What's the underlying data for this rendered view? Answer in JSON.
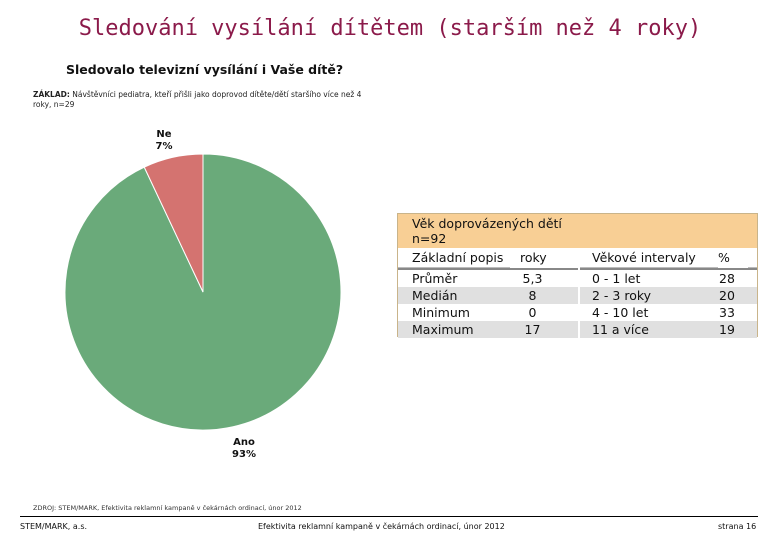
{
  "slide": {
    "title": "Sledování vysílání dítětem (starším než 4 roky)",
    "question": "Sledovalo televizní vysílání i Vaše dítě?",
    "base_label": "ZÁKLAD:",
    "base_text": "Návštěvníci pediatra, kteří přišli jako doprovod dítěte/dětí staršího více než 4 roky, n=29",
    "source": "ZDROJ: STEM/MARK, Efektivita reklamní kampaně v čekárnách ordinací, únor 2012"
  },
  "chart_data": {
    "type": "pie",
    "title": "",
    "slices": [
      {
        "label": "Ano",
        "value": 93,
        "value_label": "93%",
        "color": "#6aaa7a"
      },
      {
        "label": "Ne",
        "value": 7,
        "value_label": "7%",
        "color": "#d47370"
      }
    ],
    "start": "12 o'clock",
    "direction": "clockwise for Ne"
  },
  "age_table": {
    "title": "Věk doprovázených dětí",
    "n": "n=92",
    "left_headers": {
      "stat": "Základní popis",
      "unit": "roky"
    },
    "right_headers": {
      "interval": "Věkové intervaly",
      "pct": "%"
    },
    "left_rows": [
      {
        "stat": "Průměr",
        "value": "5,3"
      },
      {
        "stat": "Medián",
        "value": "8"
      },
      {
        "stat": "Minimum",
        "value": "0"
      },
      {
        "stat": "Maximum",
        "value": "17"
      }
    ],
    "right_rows": [
      {
        "interval": "0 - 1 let",
        "pct": "28"
      },
      {
        "interval": "2 - 3 roky",
        "pct": "20"
      },
      {
        "interval": "4 - 10 let",
        "pct": "33"
      },
      {
        "interval": "11 a více",
        "pct": "19"
      }
    ],
    "colors": {
      "header_bg": "#f8cf95",
      "shade": "#e0e0e0"
    }
  },
  "footer": {
    "left": "STEM/MARK, a.s.",
    "middle": "Efektivita reklamní kampaně v čekárnách ordinací, únor 2012",
    "right": "strana 16"
  }
}
